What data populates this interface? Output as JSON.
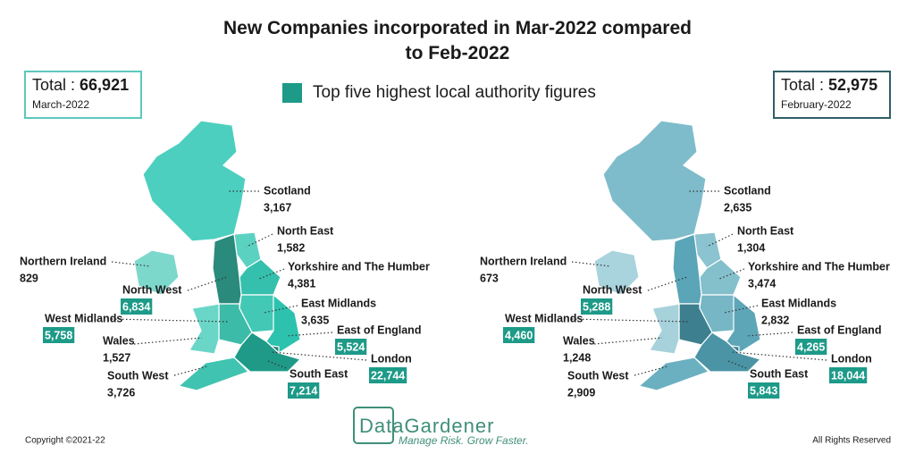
{
  "title": "New Companies incorporated in Mar-2022 compared to Feb-2022",
  "legend": {
    "label": "Top five highest local authority figures",
    "color": "#1d9a88"
  },
  "maps": [
    {
      "total_label": "Total :",
      "total": "66,921",
      "period": "March-2022",
      "border": "#5cc8bd",
      "regions": [
        {
          "name": "Scotland",
          "value": "3,167",
          "color": "#4ccfbf",
          "highlight": false
        },
        {
          "name": "North East",
          "value": "1,582",
          "color": "#5bd1c2",
          "highlight": false
        },
        {
          "name": "Northern Ireland",
          "value": "829",
          "color": "#7dd8cc",
          "highlight": false
        },
        {
          "name": "Yorkshire and The Humber",
          "value": "4,381",
          "color": "#35c0ad",
          "highlight": false
        },
        {
          "name": "North West",
          "value": "6,834",
          "color": "#2a8a7c",
          "highlight": true
        },
        {
          "name": "East Midlands",
          "value": "3,635",
          "color": "#44c8b6",
          "highlight": false
        },
        {
          "name": "West Midlands",
          "value": "5,758",
          "color": "#3dbba9",
          "highlight": true
        },
        {
          "name": "East of England",
          "value": "5,524",
          "color": "#2dc2ad",
          "highlight": true
        },
        {
          "name": "Wales",
          "value": "1,527",
          "color": "#6ad6c8",
          "highlight": false
        },
        {
          "name": "London",
          "value": "22,744",
          "color": "#2a7f72",
          "highlight": true
        },
        {
          "name": "South West",
          "value": "3,726",
          "color": "#40c3b1",
          "highlight": false
        },
        {
          "name": "South East",
          "value": "7,214",
          "color": "#1f9a88",
          "highlight": true
        }
      ]
    },
    {
      "total_label": "Total :",
      "total": "52,975",
      "period": "February-2022",
      "border": "#2f5f66",
      "regions": [
        {
          "name": "Scotland",
          "value": "2,635",
          "color": "#7fbccb",
          "highlight": false
        },
        {
          "name": "North East",
          "value": "1,304",
          "color": "#8bc3d0",
          "highlight": false
        },
        {
          "name": "Northern Ireland",
          "value": "673",
          "color": "#a9d3dd",
          "highlight": false
        },
        {
          "name": "Yorkshire and The Humber",
          "value": "3,474",
          "color": "#84bfcc",
          "highlight": false
        },
        {
          "name": "North West",
          "value": "5,288",
          "color": "#5aa5b7",
          "highlight": true
        },
        {
          "name": "East Midlands",
          "value": "2,832",
          "color": "#76b6c5",
          "highlight": false
        },
        {
          "name": "West Midlands",
          "value": "4,460",
          "color": "#3d7f8e",
          "highlight": true
        },
        {
          "name": "East of England",
          "value": "4,265",
          "color": "#5da6b8",
          "highlight": true
        },
        {
          "name": "Wales",
          "value": "1,248",
          "color": "#a7d2dc",
          "highlight": false
        },
        {
          "name": "London",
          "value": "18,044",
          "color": "#3e7d8a",
          "highlight": true
        },
        {
          "name": "South West",
          "value": "2,909",
          "color": "#6bb0c1",
          "highlight": false
        },
        {
          "name": "South East",
          "value": "5,843",
          "color": "#4a94a5",
          "highlight": true
        }
      ]
    }
  ],
  "logo": {
    "name": "DataGardener",
    "tagline": "Manage Risk. Grow Faster."
  },
  "footer": {
    "copyright": "Copyright ©2021-22",
    "rights": "All Rights Reserved"
  }
}
